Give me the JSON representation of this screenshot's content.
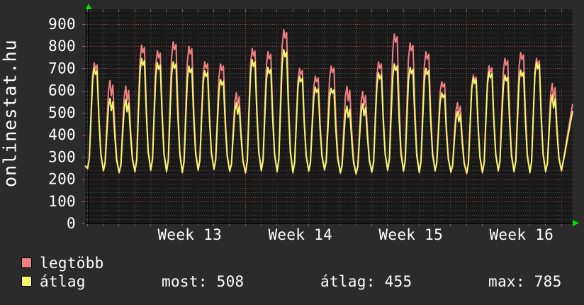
{
  "site_label": "onlinestat.hu",
  "colors": {
    "page_bg": "#2b2b2b",
    "plot_bg": "#191919",
    "grid_minor": "#474747",
    "grid_major": "#a04848",
    "tick_gray": "#6a6a6a",
    "axis": "#000000",
    "arrow": "#00dd00",
    "text": "#ffffff",
    "series_max": "#f08080",
    "series_avg": "#f5f56e"
  },
  "chart_data": {
    "type": "line",
    "title": "",
    "x_axis": {
      "unit": "day",
      "days_total": 30.87,
      "week_line_days": [
        3.13,
        10.13,
        17.13,
        24.13
      ],
      "week_labels": [
        "Week 13",
        "Week 14",
        "Week 15",
        "Week 16"
      ]
    },
    "y_axis": {
      "min": 0,
      "plot_top_value": 967,
      "major_step": 100,
      "minor_step": 20,
      "ticks": [
        0,
        100,
        200,
        300,
        400,
        500,
        600,
        700,
        800,
        900
      ]
    },
    "series": [
      {
        "name": "legtöbb",
        "role": "daily-maximum",
        "color": "#f08080",
        "daily_peaks": [
          725,
          645,
          620,
          805,
          780,
          820,
          800,
          730,
          720,
          590,
          790,
          775,
          875,
          700,
          665,
          710,
          620,
          595,
          730,
          855,
          815,
          775,
          640,
          545,
          670,
          712,
          745,
          772,
          745,
          632
        ],
        "current_end": 540
      },
      {
        "name": "átlag",
        "role": "daily-average",
        "color": "#f5f56e",
        "daily_peaks": [
          700,
          565,
          560,
          745,
          725,
          730,
          710,
          690,
          650,
          545,
          740,
          705,
          785,
          665,
          615,
          610,
          530,
          540,
          680,
          720,
          705,
          700,
          590,
          505,
          658,
          685,
          670,
          692,
          728,
          580
        ],
        "current_end": 508
      }
    ],
    "daily_troughs": [
      248,
      238,
      230,
      234,
      240,
      234,
      230,
      240,
      244,
      236,
      228,
      238,
      234,
      230,
      236,
      242,
      228,
      224,
      232,
      240,
      236,
      230,
      238,
      232,
      226,
      230,
      238,
      234,
      230,
      234,
      238
    ],
    "notch_days": [
      1,
      2,
      9,
      16,
      17,
      23,
      29
    ]
  },
  "legend": {
    "items": [
      {
        "label": "legtöbb",
        "color": "#f08080"
      },
      {
        "label": "átlag",
        "color": "#f5f56e"
      }
    ]
  },
  "stats": {
    "items": [
      {
        "label": "most",
        "value": 508,
        "text": "most: 508"
      },
      {
        "label": "átlag",
        "value": 455,
        "text": "átlag: 455"
      },
      {
        "label": "max",
        "value": 785,
        "text": "max: 785"
      }
    ]
  }
}
